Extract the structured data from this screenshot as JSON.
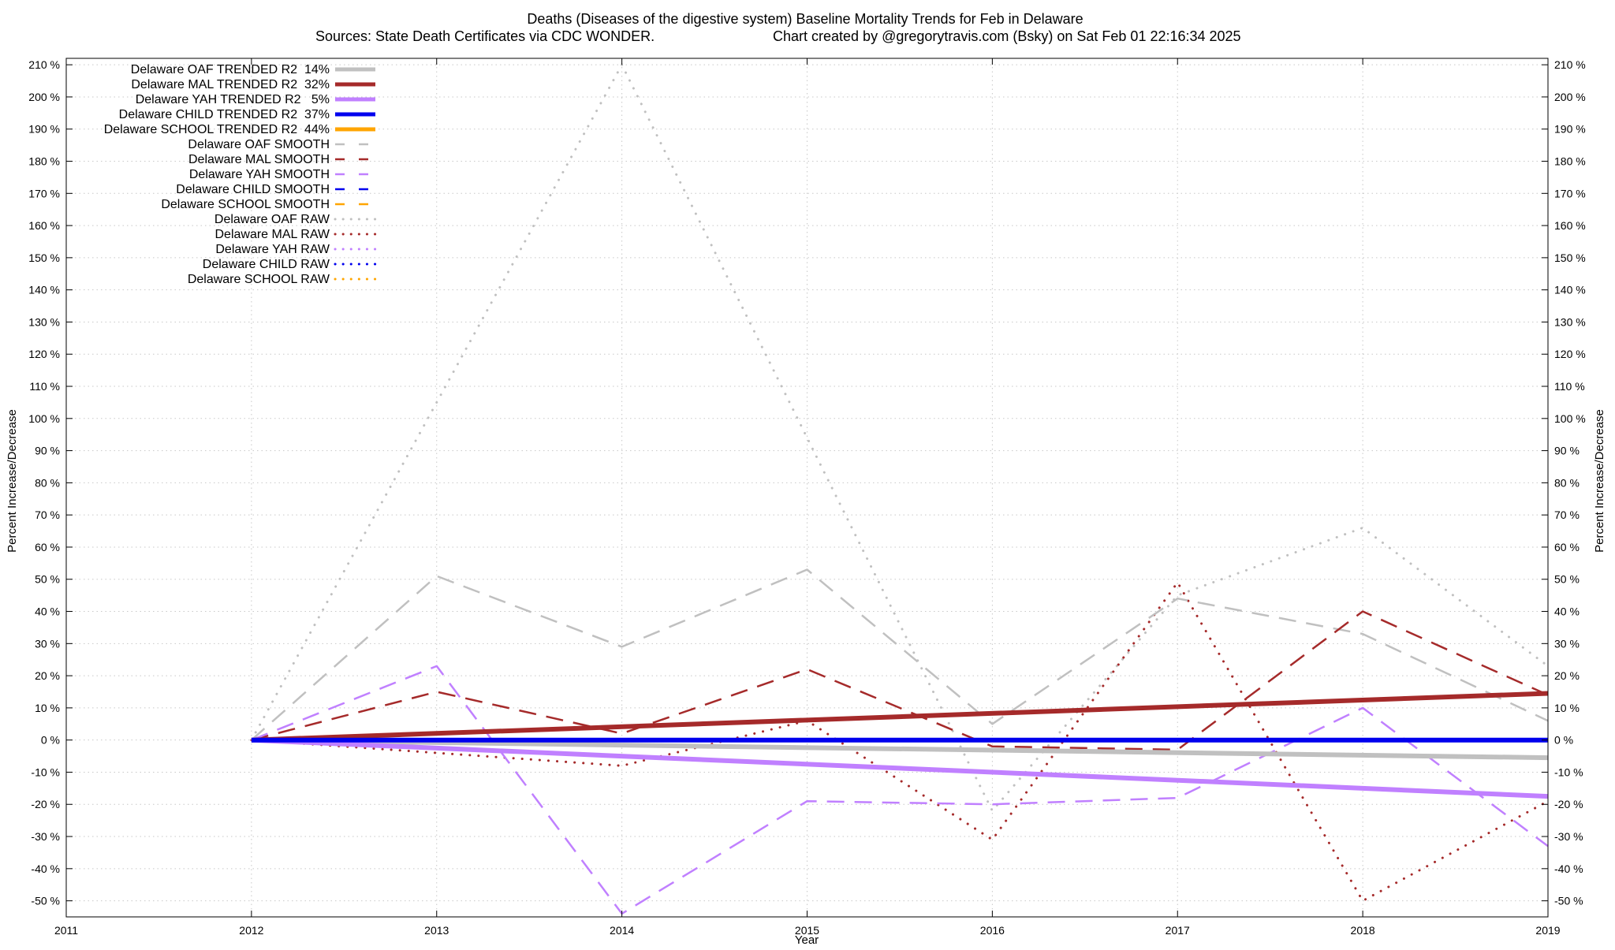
{
  "chart_data": {
    "type": "line",
    "title_line1": "Deaths (Diseases of the digestive system)  Baseline Mortality Trends for Feb in Delaware",
    "title_line2_left": "Sources: State Death Certificates via CDC WONDER.",
    "title_line2_right": "Chart created by @gregorytravis.com (Bsky) on Sat Feb 01 22:16:34 2025",
    "xlabel": "Year",
    "ylabel": "Percent Increase/Decrease",
    "ylabel_right": "Percent Increase/Decrease",
    "xlim": [
      2011,
      2019
    ],
    "ylim": [
      -55,
      212
    ],
    "x_ticks": [
      "2011",
      "2012",
      "2013",
      "2014",
      "2015",
      "2016",
      "2017",
      "2018",
      "2019"
    ],
    "y_ticks": [
      "210 %",
      "200 %",
      "190 %",
      "180 %",
      "170 %",
      "160 %",
      "150 %",
      "140 %",
      "130 %",
      "120 %",
      "110 %",
      "100 %",
      "90 %",
      "80 %",
      "70 %",
      "60 %",
      "50 %",
      "40 %",
      "30 %",
      "20 %",
      "10 %",
      "0 %",
      "-10 %",
      "-20 %",
      "-30 %",
      "-40 %",
      "-50 %"
    ],
    "y_tick_values": [
      210,
      200,
      190,
      180,
      170,
      160,
      150,
      140,
      130,
      120,
      110,
      100,
      90,
      80,
      70,
      60,
      50,
      40,
      30,
      20,
      10,
      0,
      -10,
      -20,
      -30,
      -40,
      -50
    ],
    "grid": true,
    "legend_position": "top-left",
    "series": [
      {
        "name": "Delaware OAF TRENDED R2  14%",
        "style": "trend",
        "color": "#c0c0c0",
        "x": [
          2012,
          2019
        ],
        "y": [
          0,
          -5.5
        ]
      },
      {
        "name": "Delaware MAL TRENDED R2  32%",
        "style": "trend",
        "color": "#a52a2a",
        "x": [
          2012,
          2019
        ],
        "y": [
          0,
          14.5
        ]
      },
      {
        "name": "Delaware YAH TRENDED R2   5%",
        "style": "trend",
        "color": "#c080ff",
        "x": [
          2012,
          2019
        ],
        "y": [
          0,
          -17.5
        ]
      },
      {
        "name": "Delaware CHILD TRENDED R2  37%",
        "style": "trend",
        "color": "#0000ee",
        "x": [
          2012,
          2019
        ],
        "y": [
          0,
          0
        ]
      },
      {
        "name": "Delaware SCHOOL TRENDED R2  44%",
        "style": "trend",
        "color": "#ffa500",
        "x": [],
        "y": []
      },
      {
        "name": "Delaware OAF SMOOTH",
        "style": "smooth",
        "color": "#c0c0c0",
        "x": [
          2012,
          2013,
          2014,
          2015,
          2016,
          2017,
          2018,
          2019
        ],
        "y": [
          0,
          51,
          29,
          53,
          5,
          44,
          33,
          6
        ]
      },
      {
        "name": "Delaware MAL SMOOTH",
        "style": "smooth",
        "color": "#a52a2a",
        "x": [
          2012,
          2013,
          2014,
          2015,
          2016,
          2017,
          2018,
          2019
        ],
        "y": [
          0,
          15,
          2,
          22,
          -2,
          -3,
          40,
          14
        ]
      },
      {
        "name": "Delaware YAH SMOOTH",
        "style": "smooth",
        "color": "#c080ff",
        "x": [
          2012,
          2013,
          2014,
          2015,
          2016,
          2017,
          2018,
          2019
        ],
        "y": [
          0,
          23,
          -54,
          -19,
          -20,
          -18,
          10,
          -33
        ]
      },
      {
        "name": "Delaware CHILD SMOOTH",
        "style": "smooth",
        "color": "#0000ee",
        "x": [],
        "y": []
      },
      {
        "name": "Delaware SCHOOL SMOOTH",
        "style": "smooth",
        "color": "#ffa500",
        "x": [],
        "y": []
      },
      {
        "name": "Delaware OAF RAW",
        "style": "raw",
        "color": "#c0c0c0",
        "x": [
          2012,
          2014,
          2016,
          2017,
          2018,
          2019
        ],
        "y": [
          0,
          210,
          -22,
          45,
          66,
          23
        ]
      },
      {
        "name": "Delaware MAL RAW",
        "style": "raw",
        "color": "#a52a2a",
        "x": [
          2012,
          2013,
          2014,
          2015,
          2016,
          2017,
          2018,
          2019
        ],
        "y": [
          0,
          -4,
          -8,
          6,
          -31,
          49,
          -50,
          -19
        ]
      },
      {
        "name": "Delaware YAH RAW",
        "style": "raw",
        "color": "#c080ff",
        "x": [],
        "y": []
      },
      {
        "name": "Delaware CHILD RAW",
        "style": "raw",
        "color": "#0000ee",
        "x": [],
        "y": []
      },
      {
        "name": "Delaware SCHOOL RAW",
        "style": "raw",
        "color": "#ffa500",
        "x": [],
        "y": []
      }
    ]
  }
}
